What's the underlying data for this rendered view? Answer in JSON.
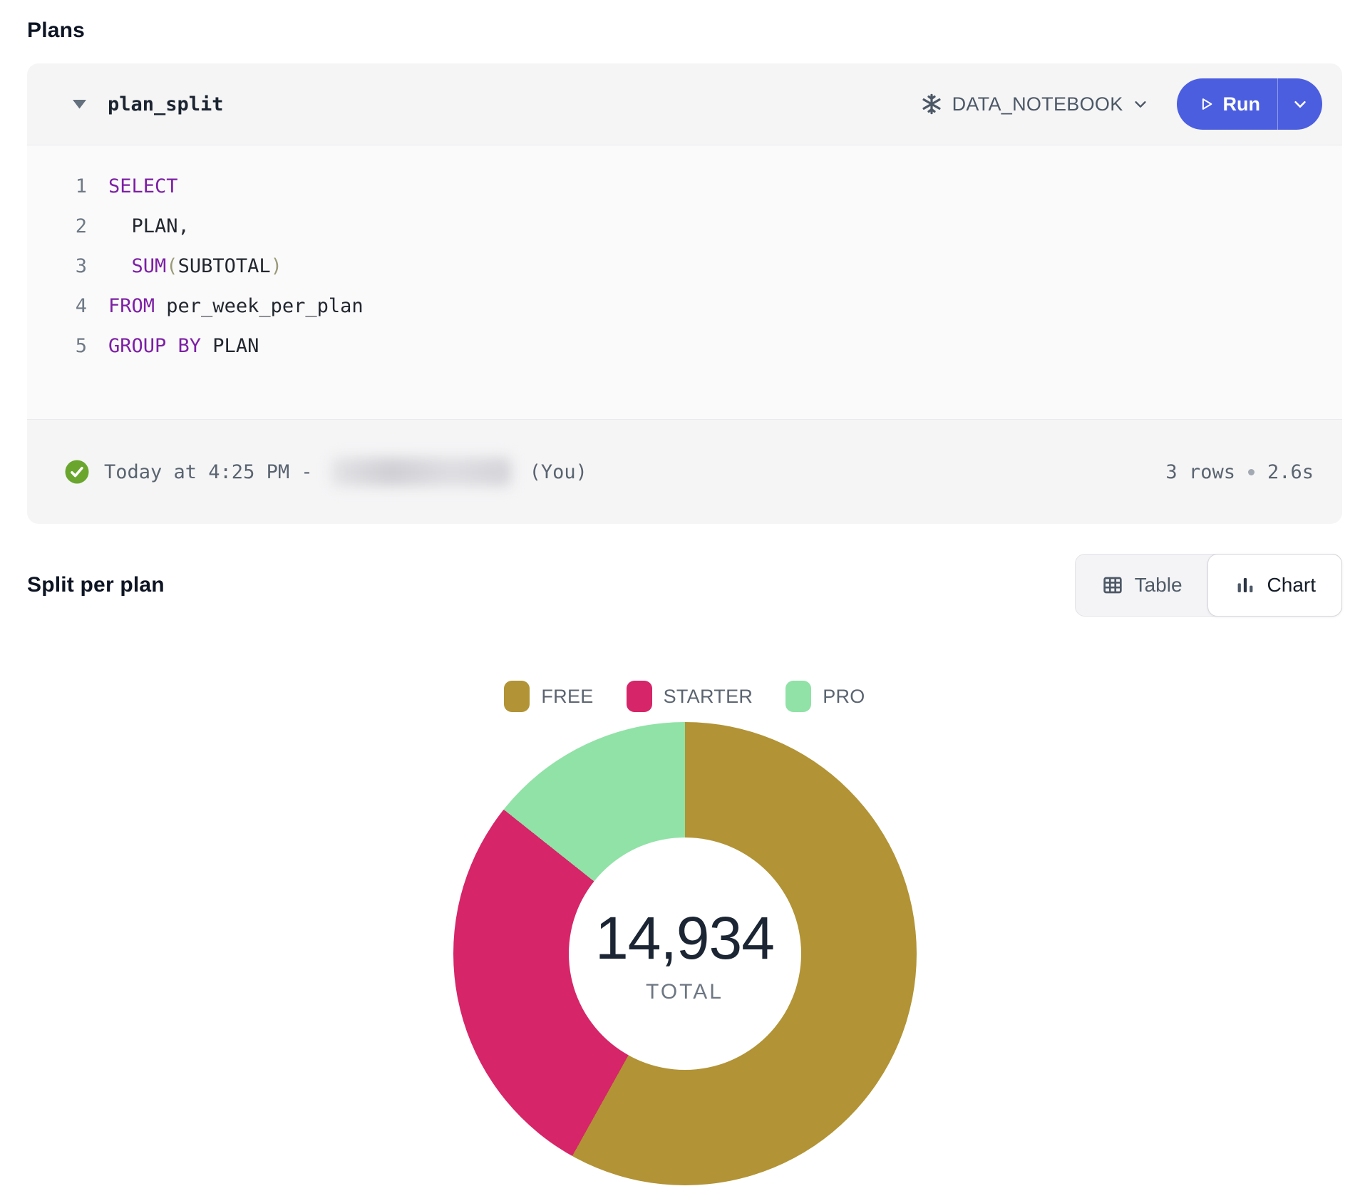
{
  "page": {
    "title": "Plans"
  },
  "cell": {
    "name": "plan_split",
    "warehouse": "DATA_NOTEBOOK",
    "run_label": "Run",
    "code": {
      "lines": [
        {
          "no": "1",
          "tokens": [
            {
              "t": "kw",
              "s": "SELECT"
            }
          ]
        },
        {
          "no": "2",
          "tokens": [
            {
              "t": "id",
              "s": "  PLAN,"
            }
          ]
        },
        {
          "no": "3",
          "tokens": [
            {
              "t": "id",
              "s": "  "
            },
            {
              "t": "kw",
              "s": "SUM"
            },
            {
              "t": "pr",
              "s": "("
            },
            {
              "t": "id",
              "s": "SUBTOTAL"
            },
            {
              "t": "pr",
              "s": ")"
            }
          ]
        },
        {
          "no": "4",
          "tokens": [
            {
              "t": "kw",
              "s": "FROM"
            },
            {
              "t": "id",
              "s": " per_week_per_plan"
            }
          ]
        },
        {
          "no": "5",
          "tokens": [
            {
              "t": "kw",
              "s": "GROUP BY"
            },
            {
              "t": "id",
              "s": " PLAN"
            }
          ]
        }
      ]
    },
    "status": {
      "timestamp": "Today at 4:25 PM -",
      "user_suffix": "(You)",
      "rows": "3 rows",
      "duration": "2.6s"
    }
  },
  "result": {
    "heading": "Split per plan",
    "toggle": {
      "table_label": "Table",
      "chart_label": "Chart"
    }
  },
  "chart_data": {
    "type": "pie",
    "donut": true,
    "title": "Split per plan",
    "categories": [
      "FREE",
      "STARTER",
      "PRO"
    ],
    "values": [
      8675,
      4122,
      2137
    ],
    "percentages": [
      58.1,
      27.6,
      14.3
    ],
    "colors": [
      "#b29335",
      "#d62568",
      "#90e2a6"
    ],
    "total_value": "14,934",
    "total_label": "TOTAL",
    "legend_position": "top"
  },
  "theme": {
    "accent_blue": "#4c5ee0",
    "success_green": "#6aa62e",
    "keyword_purple": "#7d20a4",
    "card_bg": "#f5f5f6"
  }
}
